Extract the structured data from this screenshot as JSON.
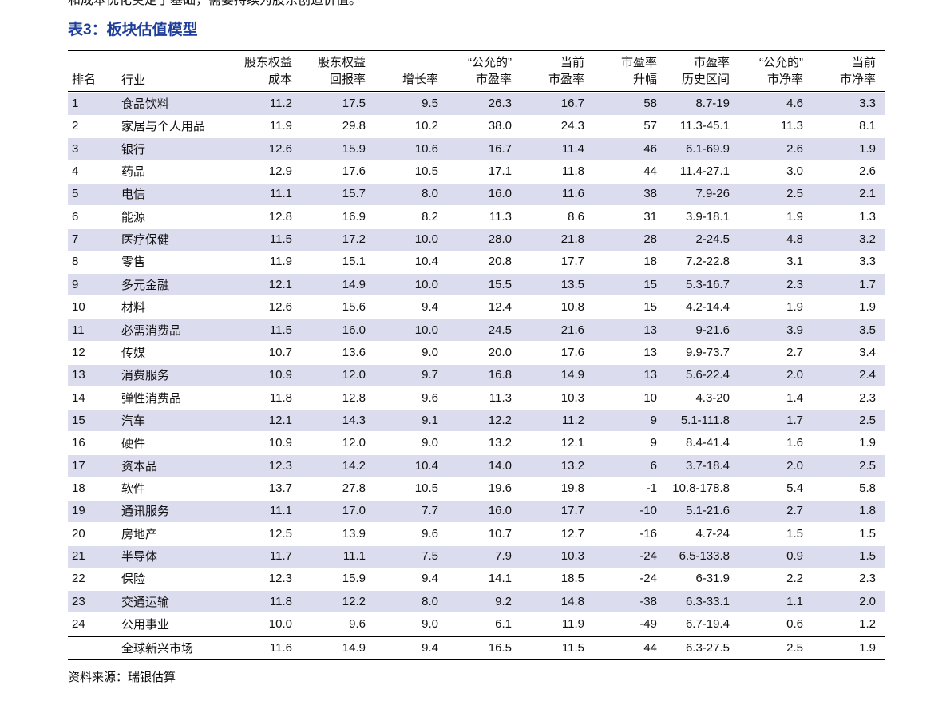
{
  "intro_line": "和成本优化奠定了基础，需要持续为股东创造价值。",
  "table_title": "表3：板块估值模型",
  "table": {
    "headers": [
      [
        "排名"
      ],
      [
        "行业"
      ],
      [
        "股东权益",
        "成本"
      ],
      [
        "股东权益",
        "回报率"
      ],
      [
        "增长率"
      ],
      [
        "“公允的”",
        "市盈率"
      ],
      [
        "当前",
        "市盈率"
      ],
      [
        "市盈率",
        "升幅"
      ],
      [
        "市盈率",
        "历史区间"
      ],
      [
        "“公允的”",
        "市净率"
      ],
      [
        "当前",
        "市净率"
      ]
    ],
    "rows": [
      [
        "1",
        "食品饮料",
        "11.2",
        "17.5",
        "9.5",
        "26.3",
        "16.7",
        "58",
        "8.7-19",
        "4.6",
        "3.3"
      ],
      [
        "2",
        "家居与个人用品",
        "11.9",
        "29.8",
        "10.2",
        "38.0",
        "24.3",
        "57",
        "11.3-45.1",
        "11.3",
        "8.1"
      ],
      [
        "3",
        "银行",
        "12.6",
        "15.9",
        "10.6",
        "16.7",
        "11.4",
        "46",
        "6.1-69.9",
        "2.6",
        "1.9"
      ],
      [
        "4",
        "药品",
        "12.9",
        "17.6",
        "10.5",
        "17.1",
        "11.8",
        "44",
        "11.4-27.1",
        "3.0",
        "2.6"
      ],
      [
        "5",
        "电信",
        "11.1",
        "15.7",
        "8.0",
        "16.0",
        "11.6",
        "38",
        "7.9-26",
        "2.5",
        "2.1"
      ],
      [
        "6",
        "能源",
        "12.8",
        "16.9",
        "8.2",
        "11.3",
        "8.6",
        "31",
        "3.9-18.1",
        "1.9",
        "1.3"
      ],
      [
        "7",
        "医疗保健",
        "11.5",
        "17.2",
        "10.0",
        "28.0",
        "21.8",
        "28",
        "2-24.5",
        "4.8",
        "3.2"
      ],
      [
        "8",
        "零售",
        "11.9",
        "15.1",
        "10.4",
        "20.8",
        "17.7",
        "18",
        "7.2-22.8",
        "3.1",
        "3.3"
      ],
      [
        "9",
        "多元金融",
        "12.1",
        "14.9",
        "10.0",
        "15.5",
        "13.5",
        "15",
        "5.3-16.7",
        "2.3",
        "1.7"
      ],
      [
        "10",
        "材料",
        "12.6",
        "15.6",
        "9.4",
        "12.4",
        "10.8",
        "15",
        "4.2-14.4",
        "1.9",
        "1.9"
      ],
      [
        "11",
        "必需消费品",
        "11.5",
        "16.0",
        "10.0",
        "24.5",
        "21.6",
        "13",
        "9-21.6",
        "3.9",
        "3.5"
      ],
      [
        "12",
        "传媒",
        "10.7",
        "13.6",
        "9.0",
        "20.0",
        "17.6",
        "13",
        "9.9-73.7",
        "2.7",
        "3.4"
      ],
      [
        "13",
        "消费服务",
        "10.9",
        "12.0",
        "9.7",
        "16.8",
        "14.9",
        "13",
        "5.6-22.4",
        "2.0",
        "2.4"
      ],
      [
        "14",
        "弹性消费品",
        "11.8",
        "12.8",
        "9.6",
        "11.3",
        "10.3",
        "10",
        "4.3-20",
        "1.4",
        "2.3"
      ],
      [
        "15",
        "汽车",
        "12.1",
        "14.3",
        "9.1",
        "12.2",
        "11.2",
        "9",
        "5.1-111.8",
        "1.7",
        "2.5"
      ],
      [
        "16",
        "硬件",
        "10.9",
        "12.0",
        "9.0",
        "13.2",
        "12.1",
        "9",
        "8.4-41.4",
        "1.6",
        "1.9"
      ],
      [
        "17",
        "资本品",
        "12.3",
        "14.2",
        "10.4",
        "14.0",
        "13.2",
        "6",
        "3.7-18.4",
        "2.0",
        "2.5"
      ],
      [
        "18",
        "软件",
        "13.7",
        "27.8",
        "10.5",
        "19.6",
        "19.8",
        "-1",
        "10.8-178.8",
        "5.4",
        "5.8"
      ],
      [
        "19",
        "通讯服务",
        "11.1",
        "17.0",
        "7.7",
        "16.0",
        "17.7",
        "-10",
        "5.1-21.6",
        "2.7",
        "1.8"
      ],
      [
        "20",
        "房地产",
        "12.5",
        "13.9",
        "9.6",
        "10.7",
        "12.7",
        "-16",
        "4.7-24",
        "1.5",
        "1.5"
      ],
      [
        "21",
        "半导体",
        "11.7",
        "11.1",
        "7.5",
        "7.9",
        "10.3",
        "-24",
        "6.5-133.8",
        "0.9",
        "1.5"
      ],
      [
        "22",
        "保险",
        "12.3",
        "15.9",
        "9.4",
        "14.1",
        "18.5",
        "-24",
        "6-31.9",
        "2.2",
        "2.3"
      ],
      [
        "23",
        "交通运输",
        "11.8",
        "12.2",
        "8.0",
        "9.2",
        "14.8",
        "-38",
        "6.3-33.1",
        "1.1",
        "2.0"
      ],
      [
        "24",
        "公用事业",
        "10.0",
        "9.6",
        "9.0",
        "6.1",
        "11.9",
        "-49",
        "6.7-19.4",
        "0.6",
        "1.2"
      ]
    ],
    "summary": [
      "",
      "全球新兴市场",
      "11.6",
      "14.9",
      "9.4",
      "16.5",
      "11.5",
      "44",
      "6.3-27.5",
      "2.5",
      "1.9"
    ]
  },
  "source": "资料来源：瑞银估算"
}
